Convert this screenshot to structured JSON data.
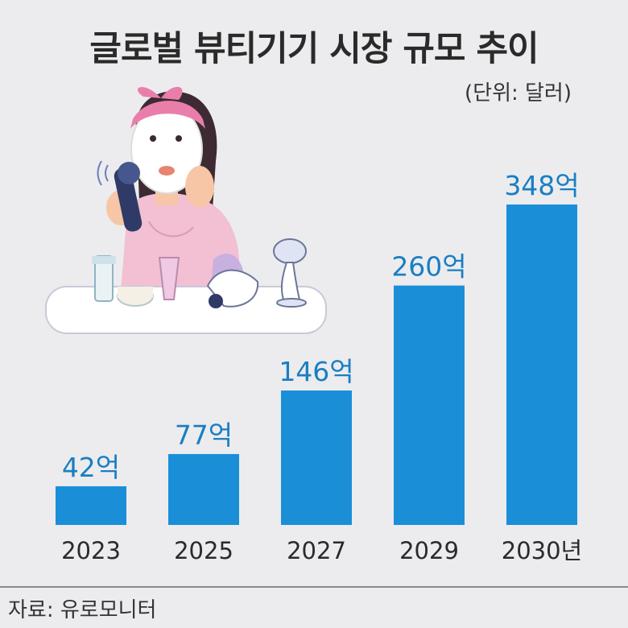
{
  "header": {
    "title": "글로벌 뷰티기기 시장 규모 추이",
    "unit_note": "(단위: 달러)"
  },
  "footer": {
    "source": "자료: 유로모니터"
  },
  "illustration": {
    "subject": "woman wearing sheet face mask using facial device at vanity table"
  },
  "colors": {
    "bar": "#1a8fd8",
    "value_label": "#1a7ec3",
    "background": "#ececef"
  },
  "chart_data": {
    "type": "bar",
    "categories": [
      "2023",
      "2025",
      "2027",
      "2029",
      "2030년"
    ],
    "values": [
      42,
      77,
      146,
      260,
      348
    ],
    "value_labels": [
      "42억",
      "77억",
      "146억",
      "260억",
      "348억"
    ],
    "title": "글로벌 뷰티기기 시장 규모 추이",
    "xlabel": "",
    "ylabel": "",
    "ylim": [
      0,
      348
    ],
    "grid": false,
    "legend": "none"
  }
}
